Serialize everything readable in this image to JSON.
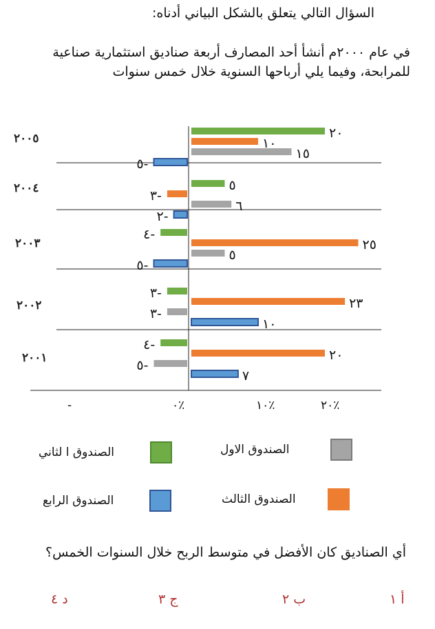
{
  "intro": "السؤال التالي يتعلق بالشكل البياني أدناه:",
  "question1": "في عام ٢٠٠٠م أنشأ أحد المصارف أربعة صناديق استثمارية صناعية للمرابحة، وفيما يلي أرباحها السنوية خلال خمس سنوات",
  "question2": "أي الصناديق كان الأفضل في متوسط الربح خلال السنوات الخمس؟",
  "choices": [
    {
      "label": "أ ١"
    },
    {
      "label": "ب ٢"
    },
    {
      "label": "ج ٣"
    },
    {
      "label": "د ٤"
    }
  ],
  "chart_data": {
    "type": "bar",
    "orientation": "horizontal",
    "categories": [
      "٢٠٠٥",
      "٢٠٠٤",
      "٢٠٠٣",
      "٢٠٠٢",
      "٢٠٠١"
    ],
    "x_tick_labels": [
      "-",
      "٪٠",
      "٪١٠",
      "٪٢٠"
    ],
    "series": [
      {
        "name": "الصندوق الاول",
        "color": "#a5a5a5",
        "values": [
          15,
          6,
          5,
          -3,
          -5
        ],
        "value_labels": [
          "١٥",
          "٦",
          "٥",
          "٣-",
          "٥-"
        ]
      },
      {
        "name": "الصندوق ا لثاني",
        "color": "#70ad47",
        "values": [
          20,
          5,
          -4,
          -3,
          -4
        ],
        "value_labels": [
          "٢٠",
          "٥",
          "٤-",
          "٣-",
          "٤-"
        ]
      },
      {
        "name": "الصندوق الثالث",
        "color": "#ed7d31",
        "values": [
          10,
          -3,
          25,
          23,
          20
        ],
        "value_labels": [
          "١٠",
          "٣-",
          "٢٥",
          "٢٣",
          "٢٠"
        ]
      },
      {
        "name": "الصندوق الرابع",
        "color": "#4472c4",
        "values": [
          -5,
          -2,
          -5,
          10,
          7
        ],
        "value_labels": [
          "٥-",
          "٢-",
          "٥-",
          "١٠",
          "٧"
        ]
      }
    ]
  }
}
